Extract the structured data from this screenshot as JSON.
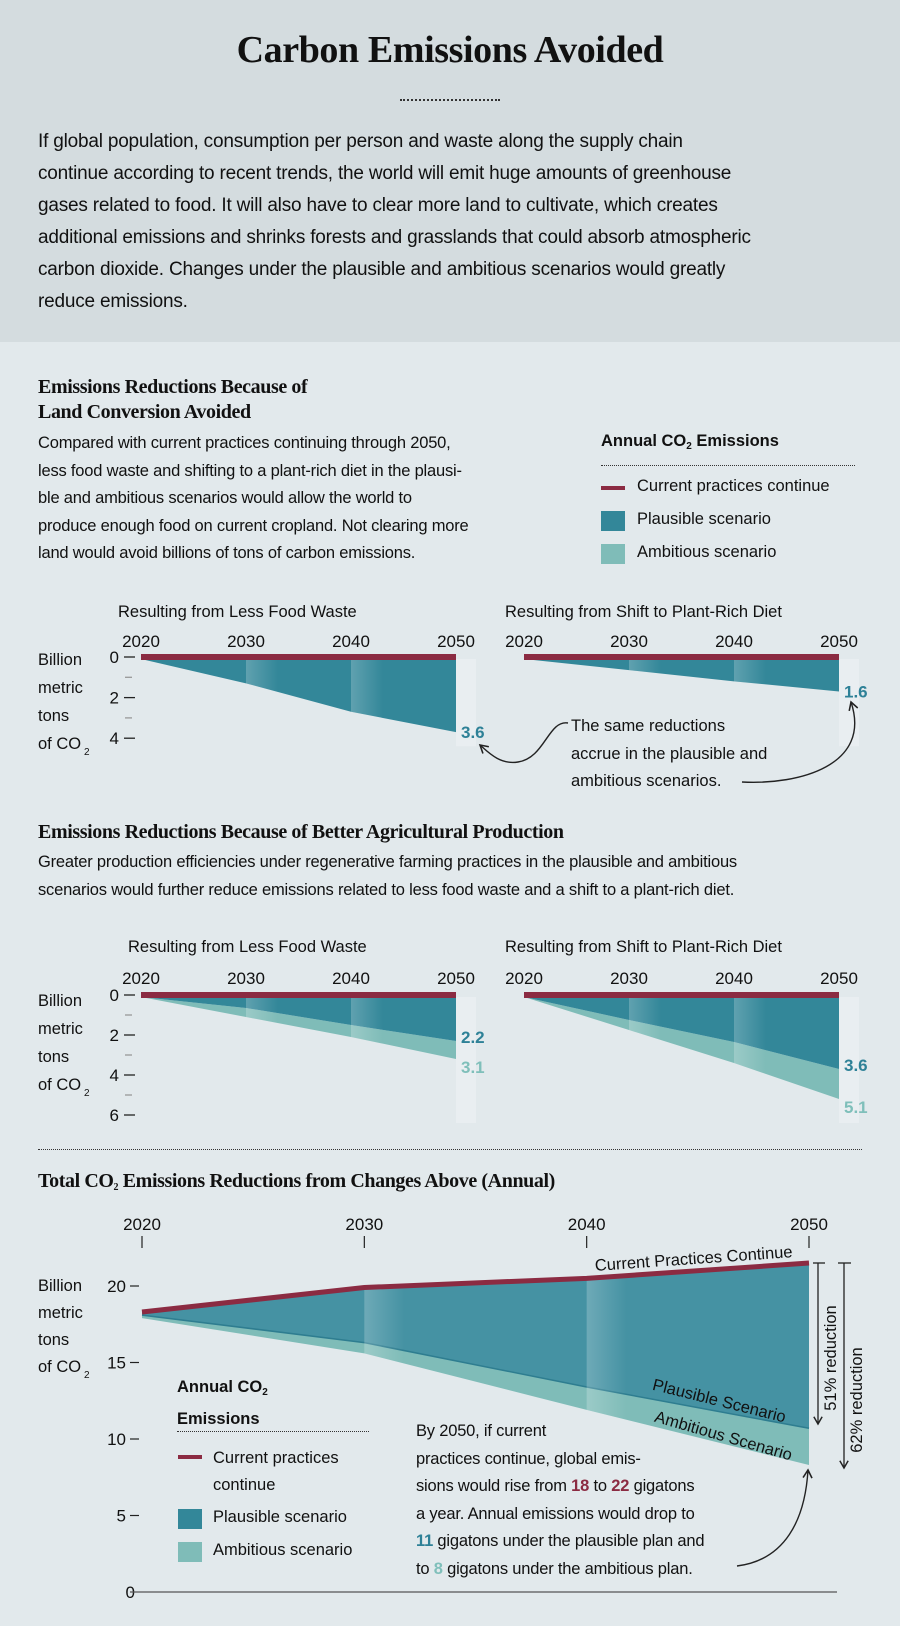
{
  "header": {
    "title": "Carbon Emissions Avoided",
    "intro_lines": [
      "If global population, consumption per person and waste along the supply chain",
      "continue according to recent trends, the world will emit huge amounts of greenhouse",
      "gases related to food. It will also have to clear more land to cultivate, which creates",
      "additional emissions and shrinks forests and grasslands that could absorb atmospheric",
      "carbon dioxide. Changes under the plausible and ambitious scenarios would greatly",
      "reduce emissions."
    ]
  },
  "colors": {
    "current": "#8b2b42",
    "plausible": "#338799",
    "ambitious": "#7fbcb8",
    "total_plausible": "#4592a3"
  },
  "legend": {
    "title": "Annual CO",
    "title_sub": "2",
    "title_suffix": " Emissions",
    "items": [
      "Current practices continue",
      "Plausible scenario",
      "Ambitious scenario"
    ]
  },
  "section1": {
    "heading_lines": [
      "Emissions Reductions Because of",
      "Land Conversion Avoided"
    ],
    "text_lines": [
      "Compared with current practices continuing through 2050,",
      "less food waste and shifting to a plant-rich diet in the plausi-",
      "ble and ambitious scenarios would allow the world to",
      "produce enough food on current cropland. Not clearing more",
      "land would avoid billions of tons of carbon emissions."
    ],
    "annotation_lines": [
      "The same reductions",
      "accrue in the plausible and",
      "ambitious scenarios."
    ]
  },
  "section2": {
    "heading": "Emissions Reductions Because of Better Agricultural Production",
    "text_lines": [
      "Greater production efficiencies under regenerative farming practices in the plausible and ambitious",
      "scenarios would further reduce emissions related to less food waste and a shift to a plant-rich diet."
    ]
  },
  "ylabel_lines": [
    "Billion",
    "metric",
    "tons",
    "of CO"
  ],
  "ylabel_sub": "2",
  "section3": {
    "heading": "Total CO",
    "heading_sub": "2",
    "heading_suffix": " Emissions Reductions from Changes Above (Annual)",
    "legend_title_lines": [
      "Annual CO",
      "Emissions"
    ],
    "legend_items": [
      "Current practices",
      "continue",
      "Plausible scenario",
      "Ambitious scenario"
    ],
    "line_labels": {
      "current": "Current Practices Continue",
      "plausible": "Plausible Scenario",
      "ambitious": "Ambitious Scenario"
    },
    "reductions": [
      "51% reduction",
      "62% reduction"
    ],
    "note": {
      "l1": "By 2050, if current",
      "l2": "practices continue, global emis-",
      "l3a": "sions would rise from ",
      "v18": "18",
      "l3b": " to ",
      "v22": "22",
      "l3c": " gigatons",
      "l4": "a year. Annual emissions would drop to",
      "v11": "11",
      "l5": " gigatons under the plausible plan and",
      "l6a": "to ",
      "v8": "8",
      "l6b": " gigatons under the ambitious plan."
    }
  },
  "chart_data": [
    {
      "type": "area",
      "title": "Resulting from Less Food Waste",
      "group": "Emissions Reductions Because of Land Conversion Avoided",
      "x": [
        2020,
        2030,
        2040,
        2050
      ],
      "ylabel": "Billion metric tons of CO2",
      "ylim": [
        0,
        4
      ],
      "yticks": [
        0,
        2,
        4
      ],
      "y_inverted": true,
      "series": [
        {
          "name": "Current practices continue",
          "values": [
            0,
            0,
            0,
            0
          ]
        },
        {
          "name": "Plausible scenario",
          "values": [
            0,
            1.2,
            2.6,
            3.6
          ]
        }
      ],
      "end_labels": [
        "3.6"
      ]
    },
    {
      "type": "area",
      "title": "Resulting from Shift to Plant-Rich Diet",
      "group": "Emissions Reductions Because of Land Conversion Avoided",
      "x": [
        2020,
        2030,
        2040,
        2050
      ],
      "ylim": [
        0,
        4
      ],
      "y_inverted": true,
      "series": [
        {
          "name": "Current practices continue",
          "values": [
            0,
            0,
            0,
            0
          ]
        },
        {
          "name": "Plausible scenario",
          "values": [
            0,
            0.55,
            1.1,
            1.6
          ]
        }
      ],
      "end_labels": [
        "1.6"
      ]
    },
    {
      "type": "area",
      "title": "Resulting from Less Food Waste",
      "group": "Emissions Reductions Because of Better Agricultural Production",
      "x": [
        2020,
        2030,
        2040,
        2050
      ],
      "ylabel": "Billion metric tons of CO2",
      "ylim": [
        0,
        6
      ],
      "yticks": [
        0,
        2,
        4,
        6
      ],
      "y_inverted": true,
      "series": [
        {
          "name": "Current practices continue",
          "values": [
            0,
            0,
            0,
            0
          ]
        },
        {
          "name": "Plausible scenario",
          "values": [
            0,
            0.55,
            1.4,
            2.2
          ]
        },
        {
          "name": "Ambitious scenario",
          "values": [
            0,
            1.0,
            2.0,
            3.1
          ]
        }
      ],
      "end_labels": [
        "2.2",
        "3.1"
      ]
    },
    {
      "type": "area",
      "title": "Resulting from Shift to Plant-Rich Diet",
      "group": "Emissions Reductions Because of Better Agricultural Production",
      "x": [
        2020,
        2030,
        2040,
        2050
      ],
      "ylim": [
        0,
        6
      ],
      "y_inverted": true,
      "series": [
        {
          "name": "Current practices continue",
          "values": [
            0,
            0,
            0,
            0
          ]
        },
        {
          "name": "Plausible scenario",
          "values": [
            0,
            1.15,
            2.25,
            3.6
          ]
        },
        {
          "name": "Ambitious scenario",
          "values": [
            0,
            1.65,
            3.3,
            5.1
          ]
        }
      ],
      "end_labels": [
        "3.6",
        "5.1"
      ]
    },
    {
      "type": "area",
      "title": "Total CO2 Emissions Reductions from Changes Above (Annual)",
      "x": [
        2020,
        2030,
        2040,
        2050
      ],
      "ylabel": "Billion metric tons of CO2",
      "ylim": [
        0,
        22
      ],
      "yticks": [
        0,
        5,
        10,
        15,
        20
      ],
      "series": [
        {
          "name": "Current Practices Continue",
          "values": [
            18.3,
            19.9,
            20.5,
            21.5
          ]
        },
        {
          "name": "Plausible Scenario",
          "values": [
            18.1,
            16.3,
            13.4,
            10.7
          ]
        },
        {
          "name": "Ambitious Scenario",
          "values": [
            17.9,
            15.6,
            11.9,
            8.3
          ]
        }
      ]
    }
  ]
}
